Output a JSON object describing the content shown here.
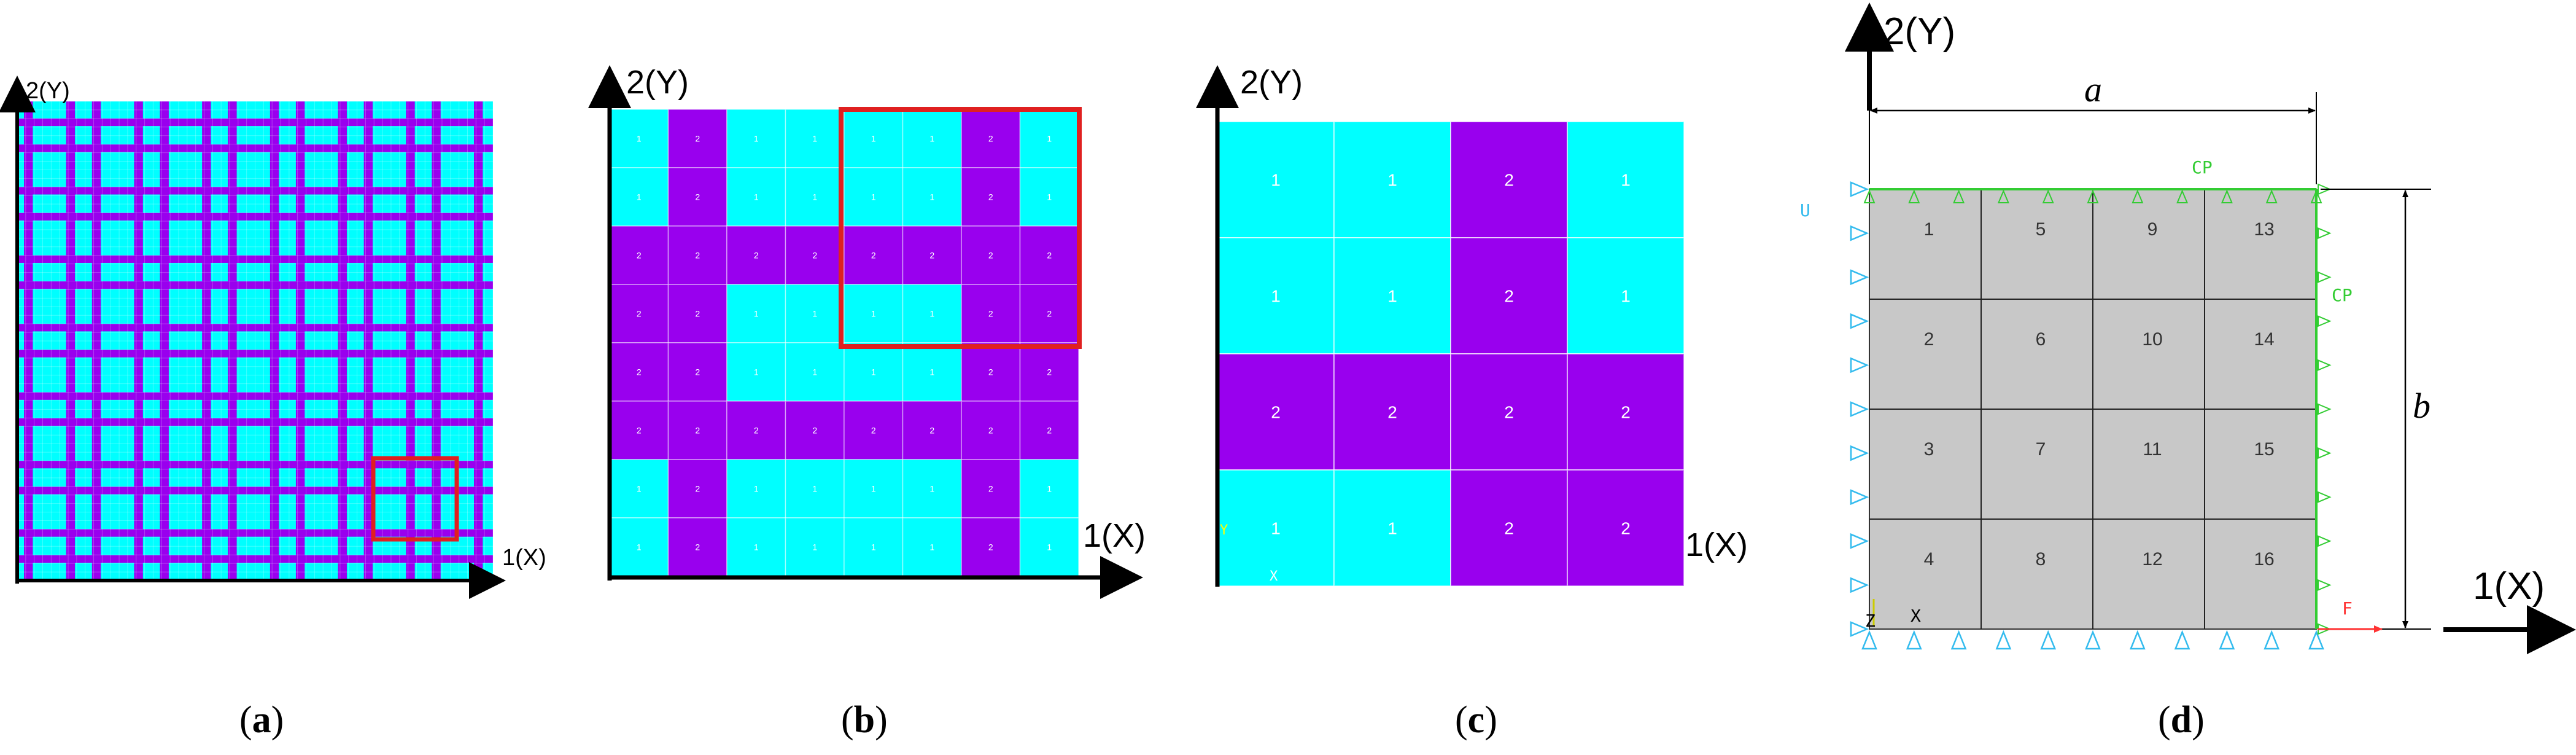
{
  "colors": {
    "fiber": "#00ffff",
    "matrix": "#9900ee",
    "highlight": "#e02020",
    "mesh_grey": "#c8c8c8",
    "bc_cyan": "#33bbee",
    "bc_green": "#33cc33",
    "load_red": "#ff3333"
  },
  "panel_a": {
    "y_axis_label": "2(Y)",
    "x_axis_label": "1(X)",
    "caption_open": "(",
    "caption_letter": "a",
    "caption_close": ")"
  },
  "panel_b": {
    "y_axis_label": "2(Y)",
    "x_axis_label": "1(X)",
    "caption_open": "(",
    "caption_letter": "b",
    "caption_close": ")",
    "grid": [
      [
        1,
        2,
        1,
        1,
        1,
        1,
        2,
        1
      ],
      [
        1,
        2,
        1,
        1,
        1,
        1,
        2,
        1
      ],
      [
        2,
        2,
        2,
        2,
        2,
        2,
        2,
        2
      ],
      [
        2,
        2,
        1,
        1,
        1,
        1,
        2,
        2
      ],
      [
        2,
        2,
        1,
        1,
        1,
        1,
        2,
        2
      ],
      [
        2,
        2,
        2,
        2,
        2,
        2,
        2,
        2
      ],
      [
        1,
        2,
        1,
        1,
        1,
        1,
        2,
        1
      ],
      [
        1,
        2,
        1,
        1,
        1,
        1,
        2,
        1
      ]
    ]
  },
  "panel_c": {
    "y_axis_label": "2(Y)",
    "x_axis_label": "1(X)",
    "corner_y": "Y",
    "corner_x": "X",
    "caption_open": "(",
    "caption_letter": "c",
    "caption_close": ")",
    "grid": [
      [
        1,
        1,
        2,
        1
      ],
      [
        1,
        1,
        2,
        1
      ],
      [
        2,
        2,
        2,
        2
      ],
      [
        1,
        1,
        2,
        2
      ]
    ]
  },
  "panel_d": {
    "y_axis_label": "2(Y)",
    "x_axis_label": "1(X)",
    "dim_a": "a",
    "dim_b": "b",
    "bc_u": "U",
    "bc_cp_top": "CP",
    "bc_cp_right": "CP",
    "load_f": "F",
    "corner_z": "Z",
    "corner_x": "X",
    "caption_open": "(",
    "caption_letter": "d",
    "caption_close": ")",
    "element_numbers": [
      [
        "1",
        "5",
        "9",
        "13"
      ],
      [
        "2",
        "6",
        "10",
        "14"
      ],
      [
        "3",
        "7",
        "11",
        "15"
      ],
      [
        "4",
        "8",
        "12",
        "16"
      ]
    ]
  }
}
